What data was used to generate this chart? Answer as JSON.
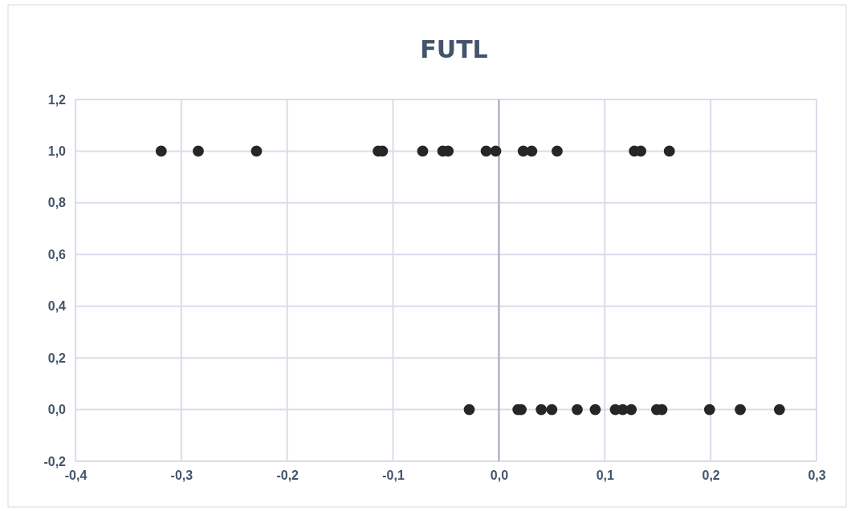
{
  "chart_data": {
    "type": "scatter",
    "title": "FUTL",
    "marker": "circle",
    "grid": true,
    "xlim": [
      -0.4,
      0.3
    ],
    "xticks": [
      {
        "value": -0.4,
        "label": "-0,4"
      },
      {
        "value": -0.3,
        "label": "-0,3"
      },
      {
        "value": -0.2,
        "label": "-0,2"
      },
      {
        "value": -0.1,
        "label": "-0,1"
      },
      {
        "value": 0,
        "label": "0,0"
      },
      {
        "value": 0.1,
        "label": "0,1"
      },
      {
        "value": 0.2,
        "label": "0,2"
      },
      {
        "value": 0.3,
        "label": "0,3"
      }
    ],
    "ylim": [
      -0.2,
      1.2
    ],
    "yticks": [
      {
        "value": -0.2,
        "label": "-0,2"
      },
      {
        "value": 0,
        "label": "0,0"
      },
      {
        "value": 0.2,
        "label": "0,2"
      },
      {
        "value": 0.4,
        "label": "0,4"
      },
      {
        "value": 0.6,
        "label": "0,6"
      },
      {
        "value": 0.8,
        "label": "0,8"
      },
      {
        "value": 1,
        "label": "1,0"
      },
      {
        "value": 1.2,
        "label": "1,2"
      }
    ],
    "series": [
      {
        "color": "#262626",
        "x": [
          -0.319,
          -0.284,
          -0.229,
          -0.114,
          -0.11,
          -0.072,
          -0.053,
          -0.048,
          -0.012,
          -0.003,
          0.023,
          0.031,
          0.055,
          0.128,
          0.134,
          0.161,
          -0.028,
          0.018,
          0.021,
          0.04,
          0.05,
          0.074,
          0.091,
          0.11,
          0.117,
          0.125,
          0.149,
          0.154,
          0.199,
          0.228,
          0.265
        ],
        "values": [
          1,
          1,
          1,
          1,
          1,
          1,
          1,
          1,
          1,
          1,
          1,
          1,
          1,
          1,
          1,
          1,
          0,
          0,
          0,
          0,
          0,
          0,
          0,
          0,
          0,
          0,
          0,
          0,
          0,
          0,
          0
        ]
      }
    ]
  }
}
